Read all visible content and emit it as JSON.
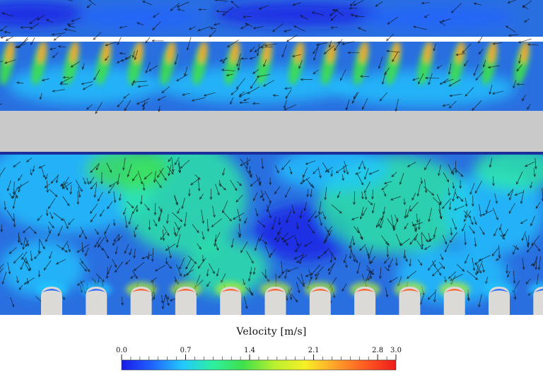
{
  "colorbar": {
    "title": "Velocity [m/s]",
    "min": 0.0,
    "max": 3.0,
    "tick_labels": [
      {
        "value": 0.0,
        "label": "0.0"
      },
      {
        "value": 0.7,
        "label": "0.7"
      },
      {
        "value": 1.4,
        "label": "1.4"
      },
      {
        "value": 2.1,
        "label": "2.1"
      },
      {
        "value": 2.8,
        "label": "2.8"
      },
      {
        "value": 3.0,
        "label": "3.0"
      }
    ],
    "colors": [
      "#1a1ae6",
      "#1f63ff",
      "#22c8ff",
      "#2ef0a0",
      "#3fe04a",
      "#b8f030",
      "#f6f026",
      "#ffa22a",
      "#ff5a22",
      "#ee1b1b"
    ]
  },
  "scene": {
    "background_color": "#2a6fe0",
    "plate_color": "#c9c9c9",
    "rod_color": "#ffffff",
    "nozzle_color": "#dcdad6",
    "vector_color": "#111111"
  }
}
